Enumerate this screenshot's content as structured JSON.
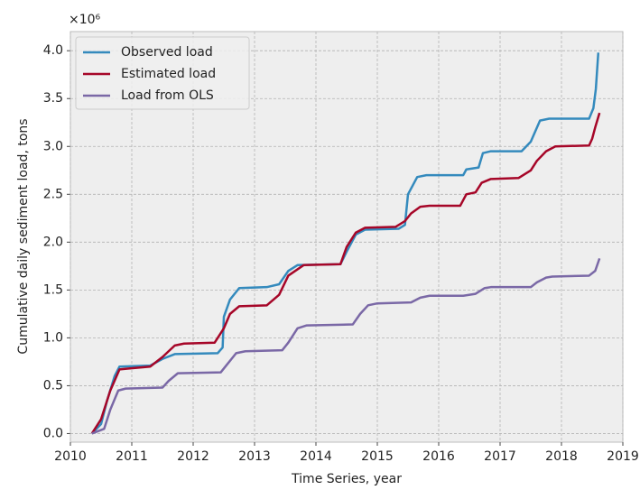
{
  "chart_data": {
    "type": "line",
    "xlabel": "Time Series, year",
    "ylabel": "Cumulative daily sediment load, tons",
    "y_offset_label": "×10⁶",
    "xlim": [
      2010,
      2019
    ],
    "xticks": [
      2010,
      2011,
      2012,
      2013,
      2014,
      2015,
      2016,
      2017,
      2018,
      2019
    ],
    "ylim": [
      -0.09,
      4.2
    ],
    "yticks": [
      {
        "value": 0,
        "label": "0.0"
      },
      {
        "value": 0.5,
        "label": "0.5"
      },
      {
        "value": 1,
        "label": "1.0"
      },
      {
        "value": 1.5,
        "label": "1.5"
      },
      {
        "value": 2,
        "label": "2.0"
      },
      {
        "value": 2.5,
        "label": "2.5"
      },
      {
        "value": 3,
        "label": "3.0"
      },
      {
        "value": 3.5,
        "label": "3.5"
      },
      {
        "value": 4,
        "label": "4.0"
      }
    ],
    "grid": true,
    "legend": "upper left",
    "series": [
      {
        "name": "Observed load",
        "color": "#348abd",
        "x": [
          2010.35,
          2010.5,
          2010.6,
          2010.72,
          2010.8,
          2011.3,
          2011.5,
          2011.7,
          2012.4,
          2012.48,
          2012.5,
          2012.6,
          2012.75,
          2013.2,
          2013.4,
          2013.55,
          2013.7,
          2014.4,
          2014.5,
          2014.65,
          2014.8,
          2015.35,
          2015.45,
          2015.5,
          2015.65,
          2015.8,
          2016.4,
          2016.45,
          2016.65,
          2016.72,
          2016.85,
          2017.35,
          2017.5,
          2017.65,
          2017.8,
          2018.45,
          2018.52,
          2018.56,
          2018.6
        ],
        "values": [
          0,
          0.1,
          0.35,
          0.6,
          0.7,
          0.71,
          0.78,
          0.83,
          0.84,
          0.9,
          1.22,
          1.4,
          1.52,
          1.53,
          1.56,
          1.7,
          1.76,
          1.77,
          1.9,
          2.08,
          2.13,
          2.14,
          2.18,
          2.5,
          2.68,
          2.7,
          2.7,
          2.76,
          2.78,
          2.93,
          2.95,
          2.95,
          3.05,
          3.27,
          3.29,
          3.29,
          3.4,
          3.6,
          3.98
        ]
      },
      {
        "name": "Estimated load",
        "color": "#a60628",
        "x": [
          2010.35,
          2010.5,
          2010.65,
          2010.8,
          2010.95,
          2011.3,
          2011.5,
          2011.7,
          2011.85,
          2012.35,
          2012.5,
          2012.6,
          2012.75,
          2013.2,
          2013.4,
          2013.55,
          2013.8,
          2014.4,
          2014.5,
          2014.65,
          2014.8,
          2015.3,
          2015.45,
          2015.55,
          2015.7,
          2015.85,
          2016.35,
          2016.45,
          2016.6,
          2016.7,
          2016.85,
          2017.3,
          2017.5,
          2017.6,
          2017.75,
          2017.9,
          2018.45,
          2018.5,
          2018.55,
          2018.62
        ],
        "values": [
          0,
          0.15,
          0.45,
          0.67,
          0.68,
          0.7,
          0.8,
          0.92,
          0.94,
          0.95,
          1.1,
          1.25,
          1.33,
          1.34,
          1.45,
          1.65,
          1.76,
          1.77,
          1.95,
          2.1,
          2.15,
          2.16,
          2.22,
          2.3,
          2.37,
          2.38,
          2.38,
          2.5,
          2.52,
          2.62,
          2.66,
          2.67,
          2.75,
          2.85,
          2.95,
          3.0,
          3.01,
          3.08,
          3.2,
          3.35
        ]
      },
      {
        "name": "Load from OLS",
        "color": "#7a68a6",
        "x": [
          2010.35,
          2010.55,
          2010.65,
          2010.78,
          2010.9,
          2011.5,
          2011.6,
          2011.75,
          2012.45,
          2012.55,
          2012.7,
          2012.85,
          2013.45,
          2013.55,
          2013.7,
          2013.85,
          2014.6,
          2014.72,
          2014.85,
          2015.0,
          2015.55,
          2015.7,
          2015.85,
          2016.4,
          2016.6,
          2016.75,
          2016.85,
          2017.5,
          2017.6,
          2017.75,
          2017.85,
          2018.45,
          2018.55,
          2018.62
        ],
        "values": [
          0,
          0.05,
          0.25,
          0.45,
          0.47,
          0.48,
          0.55,
          0.63,
          0.64,
          0.72,
          0.84,
          0.86,
          0.87,
          0.95,
          1.1,
          1.13,
          1.14,
          1.25,
          1.34,
          1.36,
          1.37,
          1.42,
          1.44,
          1.44,
          1.46,
          1.52,
          1.53,
          1.53,
          1.58,
          1.63,
          1.64,
          1.65,
          1.7,
          1.83
        ]
      }
    ]
  }
}
